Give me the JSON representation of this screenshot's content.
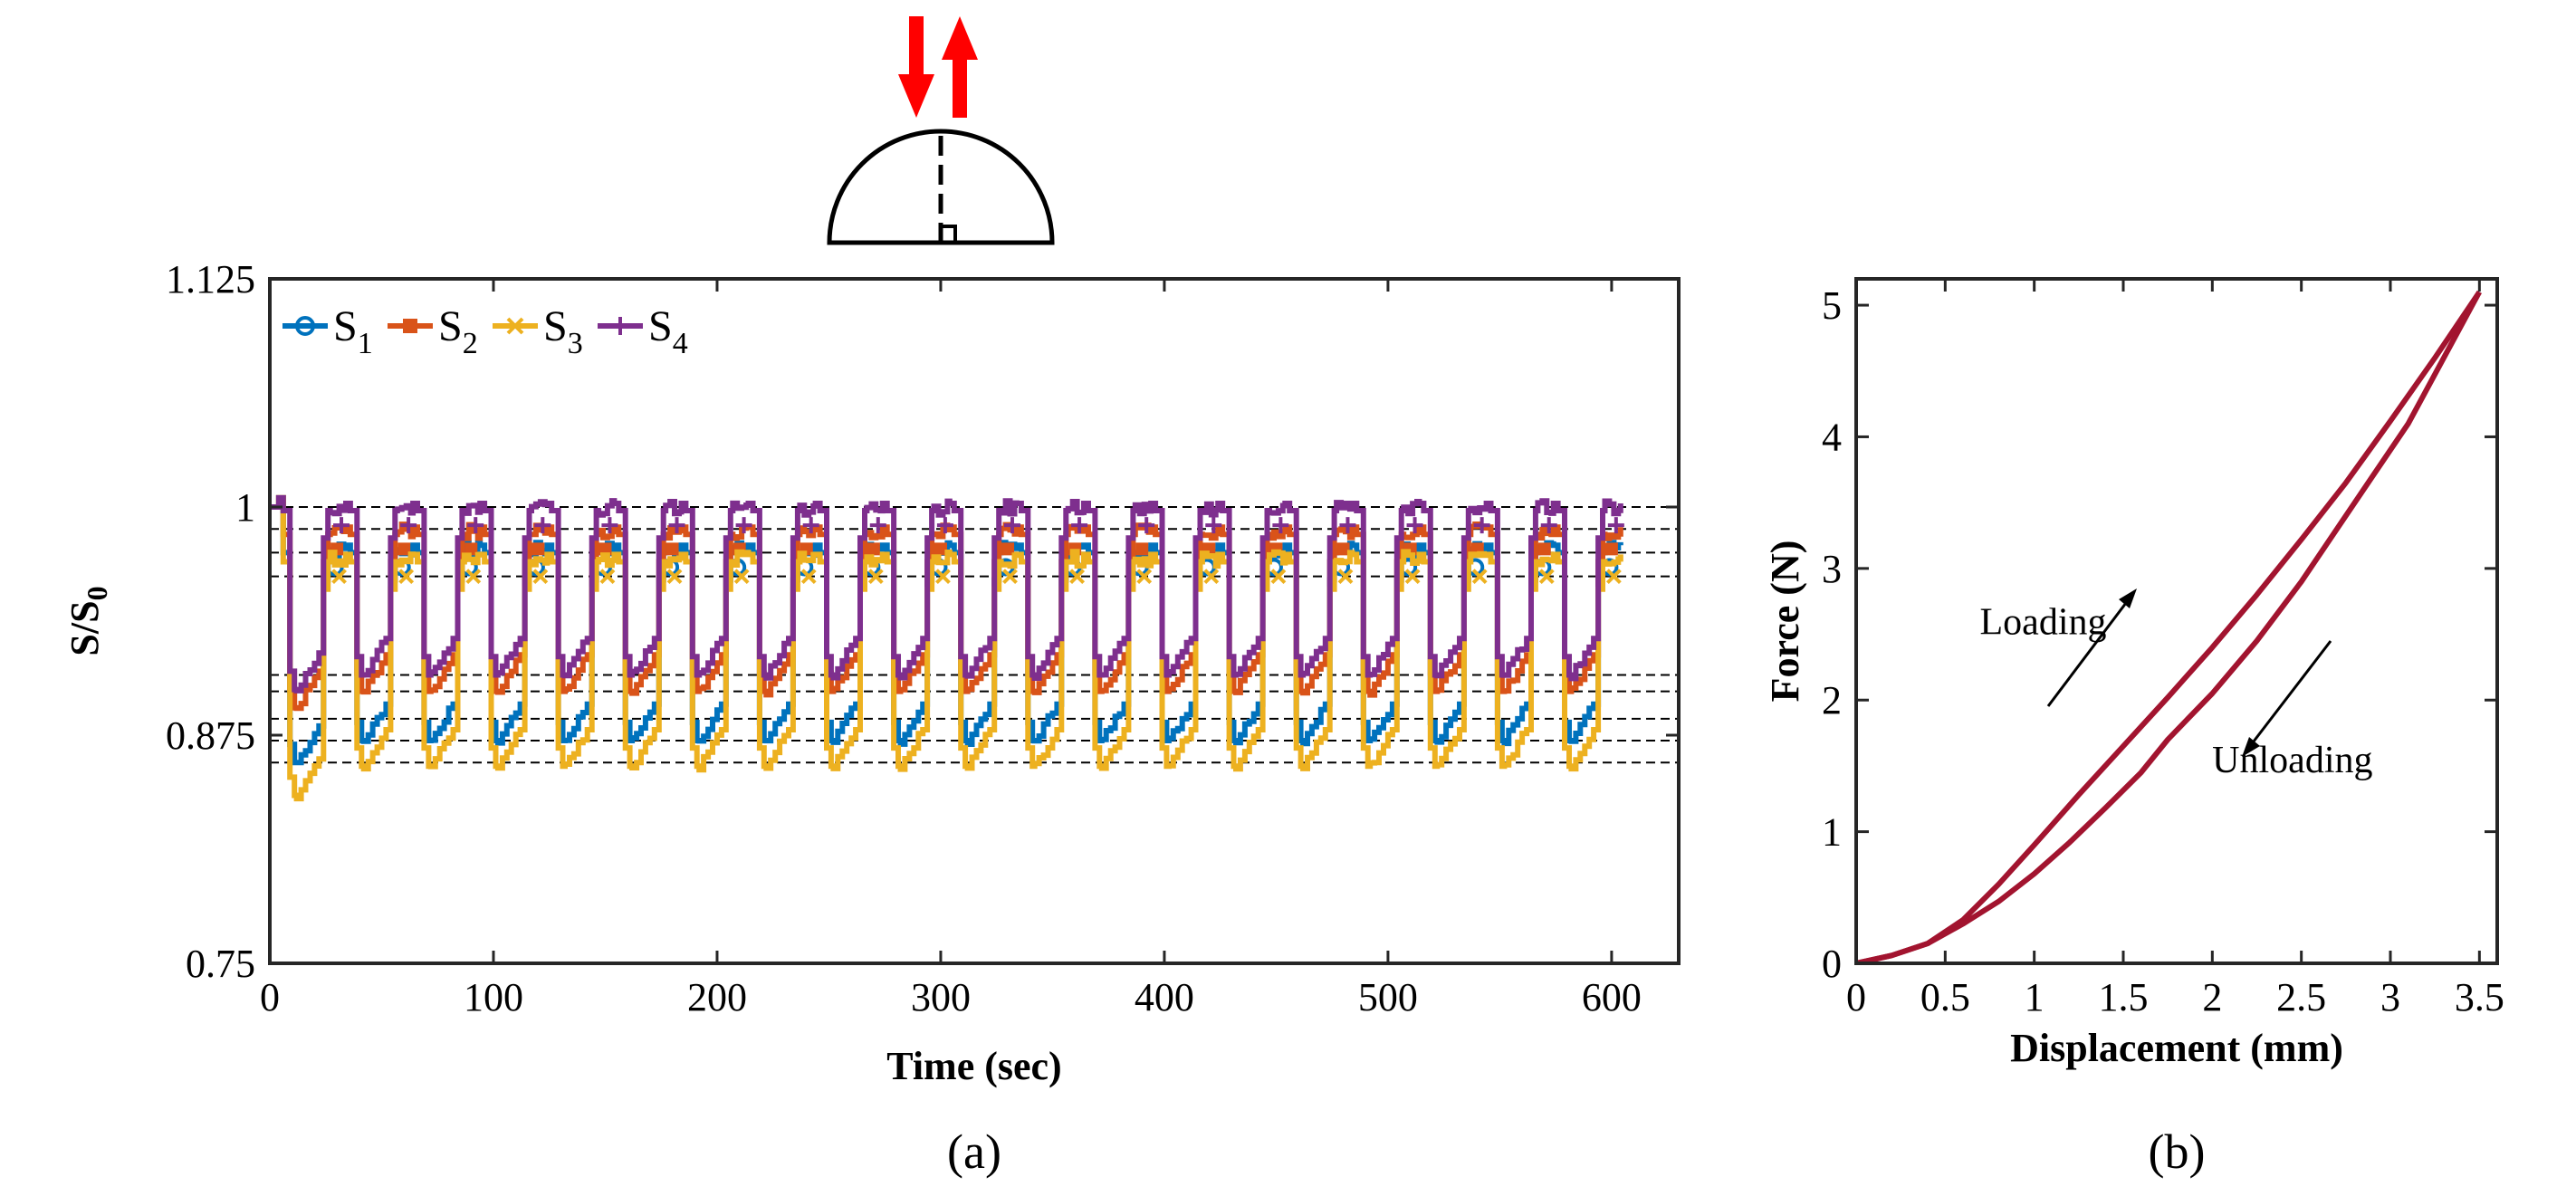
{
  "chart_data": [
    {
      "type": "line",
      "panel": "(a)",
      "title": "",
      "xlabel": "Time (sec)",
      "ylabel": "S/S0",
      "ylabel_main": "S/S",
      "ylabel_sub": "0",
      "xlim": [
        0,
        630
      ],
      "ylim": [
        0.75,
        1.125
      ],
      "xticks": [
        0,
        100,
        200,
        300,
        400,
        500,
        600
      ],
      "yticks": [
        0.75,
        0.875,
        1,
        1.125
      ],
      "xtick_labels": [
        "0",
        "100",
        "200",
        "300",
        "400",
        "500",
        "600"
      ],
      "ytick_labels": [
        "0.75",
        "0.875",
        "1",
        "1.125"
      ],
      "grid": false,
      "legend_position": "top-left",
      "cycles": {
        "count": 20,
        "period_sec": 30,
        "start_sec": 5
      },
      "reference_lines": [
        1.0,
        0.988,
        0.975,
        0.962,
        0.908,
        0.899,
        0.884,
        0.872,
        0.86
      ],
      "series": [
        {
          "name": "S1",
          "label_main": "S",
          "label_sub": "1",
          "color": "#0072BD",
          "marker": "circle",
          "high": 0.975,
          "low": 0.872,
          "min_first": 0.86
        },
        {
          "name": "S2",
          "label_main": "S",
          "label_sub": "2",
          "color": "#D95319",
          "marker": "square",
          "high": 0.985,
          "low": 0.899,
          "min_first": 0.89
        },
        {
          "name": "S3",
          "label_main": "S",
          "label_sub": "3",
          "color": "#EDB120",
          "marker": "x",
          "high": 0.97,
          "low": 0.858,
          "min_first": 0.842
        },
        {
          "name": "S4",
          "label_main": "S",
          "label_sub": "4",
          "color": "#7E2F8E",
          "marker": "plus",
          "high": 0.998,
          "low": 0.908,
          "min_first": 0.9
        }
      ],
      "inset": {
        "description": "dome",
        "arrows": [
          "down",
          "up"
        ],
        "arrow_color": "#FF0000"
      }
    },
    {
      "type": "line",
      "panel": "(b)",
      "title": "",
      "xlabel": "Displacement (mm)",
      "ylabel": "Force (N)",
      "xlim": [
        0,
        3.6
      ],
      "ylim": [
        0,
        5.2
      ],
      "xticks": [
        0,
        0.5,
        1,
        1.5,
        2,
        2.5,
        3,
        3.5
      ],
      "yticks": [
        0,
        1,
        2,
        3,
        4,
        5
      ],
      "xtick_labels": [
        "0",
        "0.5",
        "1",
        "1.5",
        "2",
        "2.5",
        "3",
        "3.5"
      ],
      "ytick_labels": [
        "0",
        "1",
        "2",
        "3",
        "4",
        "5"
      ],
      "grid": false,
      "series": [
        {
          "name": "Loading",
          "color": "#A2142F",
          "x": [
            0,
            0.2,
            0.4,
            0.6,
            0.8,
            1.0,
            1.25,
            1.5,
            1.75,
            2.0,
            2.25,
            2.5,
            2.75,
            3.0,
            3.25,
            3.5
          ],
          "y": [
            0,
            0.06,
            0.15,
            0.33,
            0.6,
            0.9,
            1.28,
            1.65,
            2.02,
            2.4,
            2.8,
            3.22,
            3.65,
            4.12,
            4.6,
            5.1
          ]
        },
        {
          "name": "Unloading",
          "color": "#A2142F",
          "x": [
            3.5,
            3.3,
            3.1,
            2.9,
            2.7,
            2.5,
            2.25,
            2.0,
            1.75,
            1.6,
            1.4,
            1.2,
            1.0,
            0.8,
            0.6,
            0.4,
            0.2,
            0
          ],
          "y": [
            5.1,
            4.6,
            4.1,
            3.7,
            3.3,
            2.9,
            2.45,
            2.05,
            1.7,
            1.45,
            1.18,
            0.92,
            0.68,
            0.47,
            0.3,
            0.15,
            0.06,
            0
          ]
        }
      ],
      "annotations": [
        {
          "text": "Loading",
          "x": 1.05,
          "y": 2.5
        },
        {
          "text": "Unloading",
          "x": 2.45,
          "y": 1.45
        }
      ]
    }
  ],
  "captions": {
    "a": "(a)",
    "b": "(b)"
  }
}
